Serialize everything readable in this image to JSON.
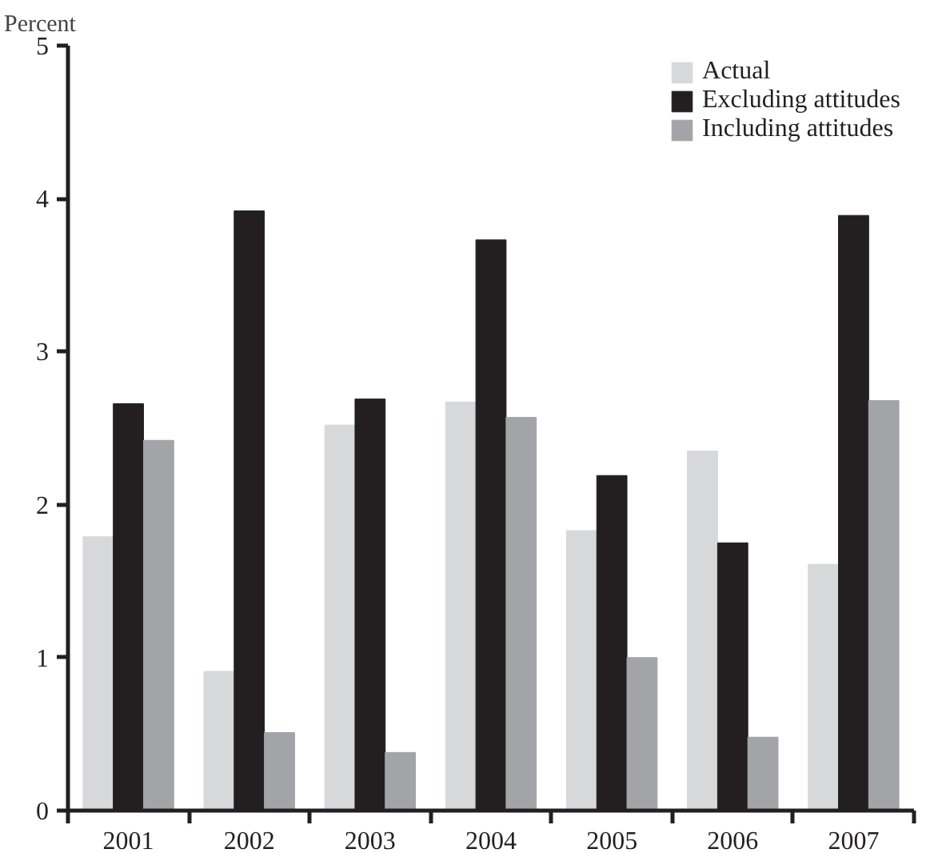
{
  "chart_data": {
    "type": "bar",
    "ylabel": "Percent",
    "categories": [
      "2001",
      "2002",
      "2003",
      "2004",
      "2005",
      "2006",
      "2007"
    ],
    "series": [
      {
        "name": "Actual",
        "color": "#d7d8da",
        "values": [
          1.79,
          0.91,
          2.52,
          2.67,
          1.83,
          2.35,
          1.61
        ]
      },
      {
        "name": "Excluding attitudes",
        "color": "#231f20",
        "values": [
          2.66,
          3.92,
          2.69,
          3.73,
          2.19,
          1.75,
          3.89
        ]
      },
      {
        "name": "Including attitudes",
        "color": "#a3a4a8",
        "values": [
          2.42,
          0.51,
          0.38,
          2.57,
          1.0,
          0.48,
          2.68
        ]
      }
    ],
    "ylim": [
      0,
      5
    ],
    "yticks": [
      0,
      1,
      2,
      3,
      4,
      5
    ],
    "grid": false,
    "legend": "top right"
  }
}
